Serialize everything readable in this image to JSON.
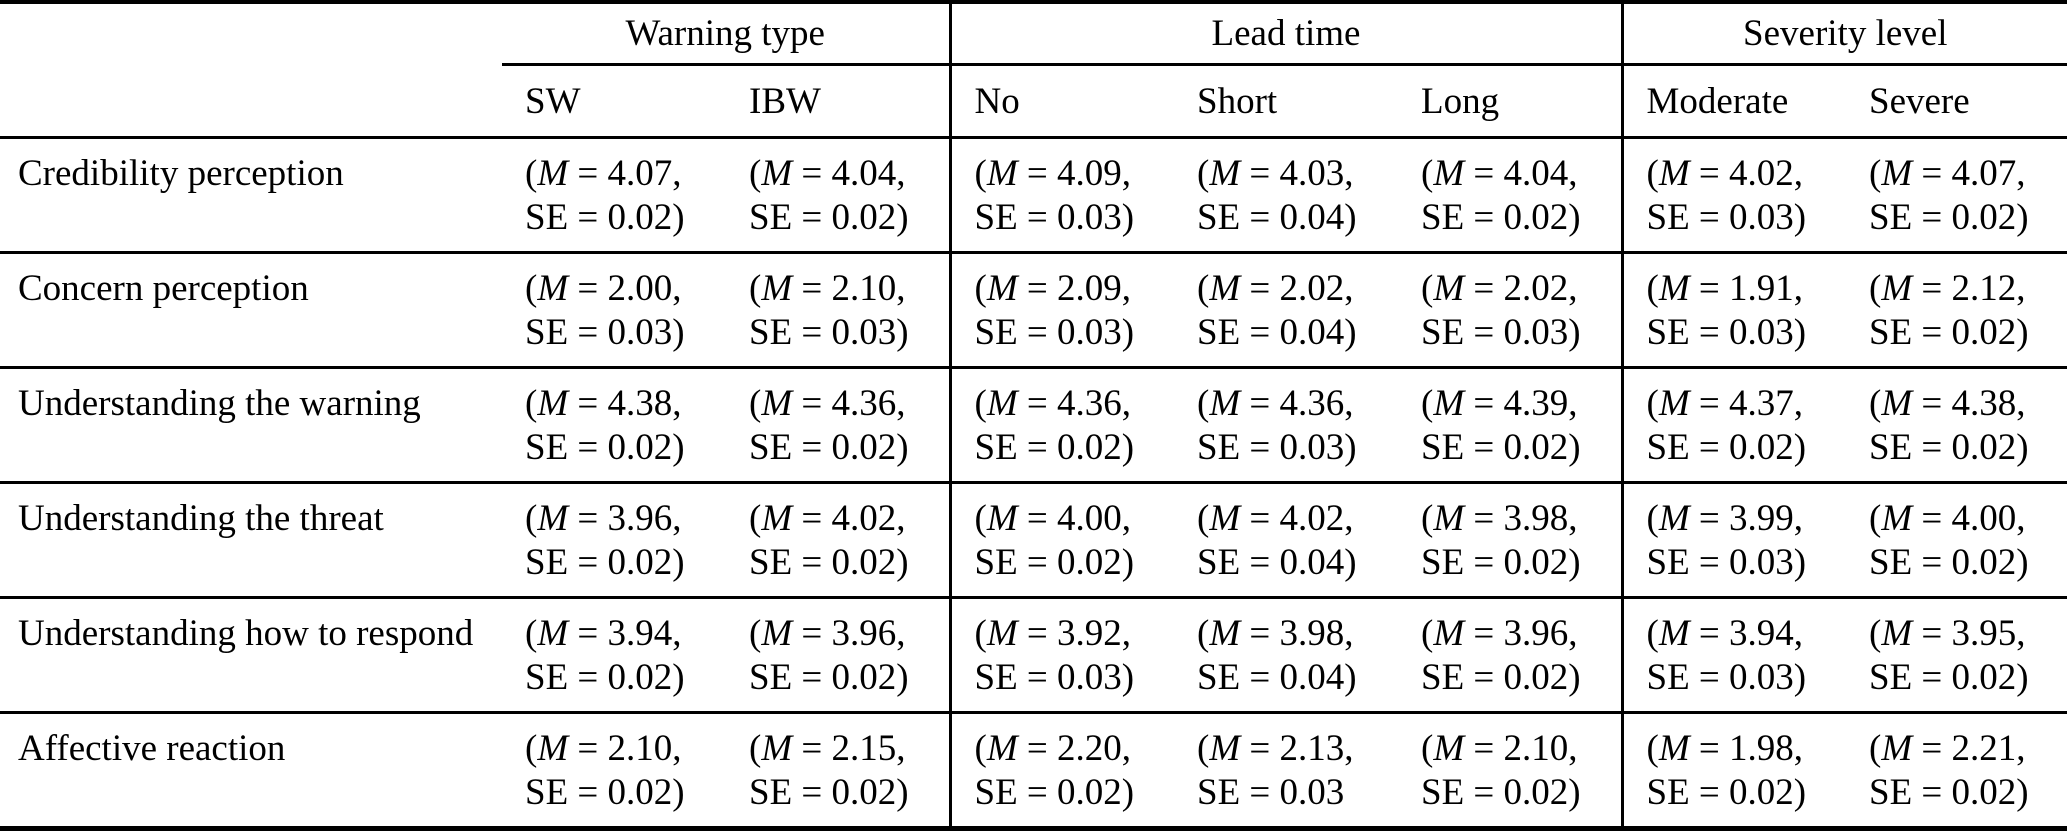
{
  "page": {
    "background_color": "#ffffff",
    "text_color": "#000000",
    "rule_color": "#000000"
  },
  "table": {
    "stub_label": "",
    "groups": [
      {
        "label": "Warning type",
        "columns": [
          "SW",
          "IBW"
        ]
      },
      {
        "label": "Lead time",
        "columns": [
          "No",
          "Short",
          "Long"
        ]
      },
      {
        "label": "Severity level",
        "columns": [
          "Moderate",
          "Severe"
        ]
      }
    ],
    "cell_format": {
      "open_paren": "(",
      "m_symbol": "M",
      "equals": " = ",
      "comma": ",",
      "se_label": "SE"
    },
    "rows": [
      {
        "label": "Credibility perception",
        "cells": [
          {
            "m": "4.07",
            "se": "0.02)"
          },
          {
            "m": "4.04",
            "se": "0.02)"
          },
          {
            "m": "4.09",
            "se": "0.03)"
          },
          {
            "m": "4.03",
            "se": "0.04)"
          },
          {
            "m": "4.04",
            "se": "0.02)"
          },
          {
            "m": "4.02",
            "se": "0.03)"
          },
          {
            "m": "4.07",
            "se": "0.02)"
          }
        ]
      },
      {
        "label": "Concern perception",
        "cells": [
          {
            "m": "2.00",
            "se": "0.03)"
          },
          {
            "m": "2.10",
            "se": "0.03)"
          },
          {
            "m": "2.09",
            "se": "0.03)"
          },
          {
            "m": "2.02",
            "se": "0.04)"
          },
          {
            "m": "2.02",
            "se": "0.03)"
          },
          {
            "m": "1.91",
            "se": "0.03)"
          },
          {
            "m": "2.12",
            "se": "0.02)"
          }
        ]
      },
      {
        "label": "Understanding the warning",
        "cells": [
          {
            "m": "4.38",
            "se": "0.02)"
          },
          {
            "m": "4.36",
            "se": "0.02)"
          },
          {
            "m": "4.36",
            "se": "0.02)"
          },
          {
            "m": "4.36",
            "se": "0.03)"
          },
          {
            "m": "4.39",
            "se": "0.02)"
          },
          {
            "m": "4.37",
            "se": "0.02)"
          },
          {
            "m": "4.38",
            "se": "0.02)"
          }
        ]
      },
      {
        "label": "Understanding the threat",
        "cells": [
          {
            "m": "3.96",
            "se": "0.02)"
          },
          {
            "m": "4.02",
            "se": "0.02)"
          },
          {
            "m": "4.00",
            "se": "0.02)"
          },
          {
            "m": "4.02",
            "se": "0.04)"
          },
          {
            "m": "3.98",
            "se": "0.02)"
          },
          {
            "m": "3.99",
            "se": "0.03)"
          },
          {
            "m": "4.00",
            "se": "0.02)"
          }
        ]
      },
      {
        "label": "Understanding how to respond",
        "cells": [
          {
            "m": "3.94",
            "se": "0.02)"
          },
          {
            "m": "3.96",
            "se": "0.02)"
          },
          {
            "m": "3.92",
            "se": "0.03)"
          },
          {
            "m": "3.98",
            "se": "0.04)"
          },
          {
            "m": "3.96",
            "se": "0.02)"
          },
          {
            "m": "3.94",
            "se": "0.03)"
          },
          {
            "m": "3.95",
            "se": "0.02)"
          }
        ]
      },
      {
        "label": "Affective reaction",
        "cells": [
          {
            "m": "2.10",
            "se": "0.02)"
          },
          {
            "m": "2.15",
            "se": "0.02)"
          },
          {
            "m": "2.20",
            "se": "0.02)"
          },
          {
            "m": "2.13",
            "se": "0.03"
          },
          {
            "m": "2.10",
            "se": "0.02)"
          },
          {
            "m": "1.98",
            "se": "0.02)"
          },
          {
            "m": "2.21",
            "se": "0.02)"
          }
        ]
      }
    ]
  }
}
